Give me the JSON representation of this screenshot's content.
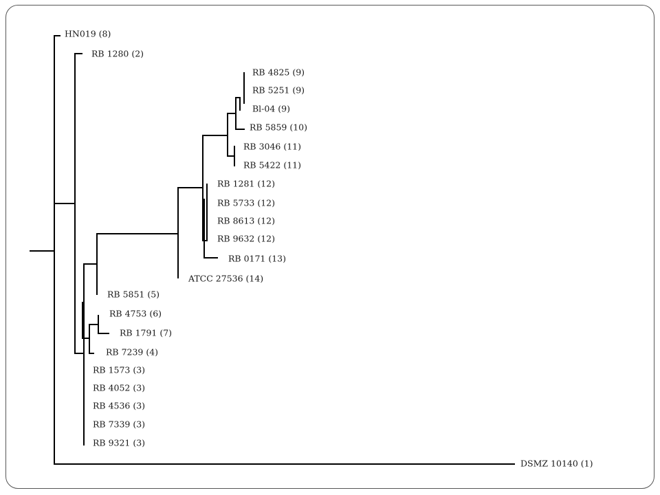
{
  "labels": {
    "hn019": "HN019  (8)",
    "rb1280": "RB 1280 (2)",
    "rb4825": "RB 4825 (9)",
    "rb5251": "RB 5251 (9)",
    "bl04": "Bl-04 (9)",
    "rb5859": "RB 5859 (10)",
    "rb3046": "RB 3046 (11)",
    "rb5422": "RB 5422 (11)",
    "rb1281": "RB 1281 (12)",
    "rb5733": "RB 5733 (12)",
    "rb8613": "RB 8613 (12)",
    "rb9632": "RB 9632 (12)",
    "rb0171": "RB 0171 (13)",
    "atcc27536": "ATCC 27536 (14)",
    "rb5851": "RB 5851 (5)",
    "rb4753": "RB 4753 (6)",
    "rb1791": "RB 1791 (7)",
    "rb7239": "RB 7239 (4)",
    "rb1573": "RB 1573 (3)",
    "rb4052": "RB 4052 (3)",
    "rb4536": "RB 4536 (3)",
    "rb7339": "RB 7339 (3)",
    "rb9321": "RB 9321 (3)",
    "dsmz10140": "DSMZ  10140 (1)"
  }
}
